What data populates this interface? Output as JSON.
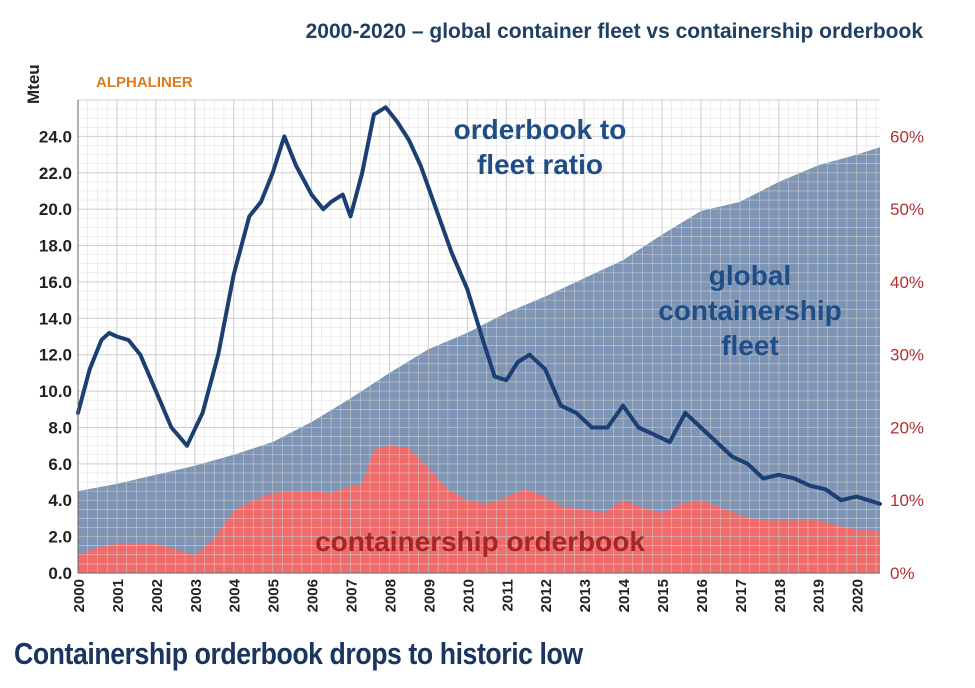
{
  "title": "2000-2020 – global container fleet  vs containership orderbook",
  "headline": "Containership orderbook drops to historic low",
  "brand": "ALPHALINER",
  "annotations": {
    "ratio": "orderbook to fleet ratio",
    "fleet": "global containership fleet",
    "orderbook": "containership orderbook"
  },
  "colors": {
    "fleet_fill": "#7f95b5",
    "orderbook_fill": "#f26b6b",
    "ratio_line": "#1c3f73",
    "left_axis_text": "#222222",
    "right_axis_text": "#b03030",
    "title_text": "#1f3f63"
  },
  "chart_data": {
    "type": "area",
    "x_axis": {
      "ticks": [
        "2000",
        "2001",
        "2002",
        "2003",
        "2004",
        "2005",
        "2006",
        "2007",
        "2008",
        "2009",
        "2010",
        "2011",
        "2012",
        "2013",
        "2014",
        "2015",
        "2016",
        "2017",
        "2018",
        "2019",
        "2020"
      ],
      "range": [
        2000,
        2020.6
      ]
    },
    "y_left": {
      "label": "Mteu",
      "range": [
        0,
        26
      ],
      "ticks": [
        "0.0",
        "2.0",
        "4.0",
        "6.0",
        "8.0",
        "10.0",
        "12.0",
        "14.0",
        "16.0",
        "18.0",
        "20.0",
        "22.0",
        "24.0"
      ]
    },
    "y_right": {
      "range": [
        0,
        0.65
      ],
      "ticks": [
        "0%",
        "10%",
        "20%",
        "30%",
        "40%",
        "50%",
        "60%"
      ]
    },
    "grid": true,
    "series": [
      {
        "name": "global containership fleet",
        "axis": "left",
        "type": "area",
        "x": [
          2000,
          2001,
          2002,
          2003,
          2004,
          2005,
          2006,
          2007,
          2008,
          2009,
          2010,
          2011,
          2012,
          2013,
          2014,
          2015,
          2016,
          2017,
          2018,
          2019,
          2020,
          2020.6
        ],
        "y": [
          4.5,
          4.9,
          5.4,
          5.9,
          6.5,
          7.2,
          8.3,
          9.6,
          11.0,
          12.3,
          13.2,
          14.3,
          15.2,
          16.2,
          17.2,
          18.6,
          19.9,
          20.4,
          21.5,
          22.4,
          23.0,
          23.4
        ]
      },
      {
        "name": "containership orderbook",
        "axis": "left",
        "type": "area",
        "x": [
          2000,
          2000.5,
          2001,
          2001.5,
          2002,
          2002.5,
          2003,
          2003.5,
          2004,
          2004.5,
          2005,
          2005.5,
          2006,
          2006.5,
          2007,
          2007.3,
          2007.6,
          2008,
          2008.5,
          2009,
          2009.5,
          2010,
          2010.5,
          2011,
          2011.5,
          2012,
          2012.5,
          2013,
          2013.5,
          2014,
          2014.5,
          2015,
          2015.5,
          2016,
          2016.5,
          2017,
          2017.5,
          2018,
          2018.5,
          2019,
          2019.5,
          2020,
          2020.6
        ],
        "y": [
          1.0,
          1.4,
          1.6,
          1.6,
          1.6,
          1.3,
          1.0,
          1.9,
          3.4,
          4.0,
          4.4,
          4.5,
          4.5,
          4.4,
          4.8,
          4.9,
          6.8,
          7.0,
          6.9,
          5.8,
          4.6,
          4.0,
          3.8,
          4.2,
          4.6,
          4.2,
          3.6,
          3.5,
          3.3,
          4.0,
          3.6,
          3.3,
          3.8,
          4.0,
          3.6,
          3.2,
          2.9,
          2.9,
          2.9,
          2.9,
          2.6,
          2.4,
          2.3
        ]
      },
      {
        "name": "orderbook to fleet ratio",
        "axis": "right",
        "type": "line",
        "x": [
          2000,
          2000.3,
          2000.6,
          2000.8,
          2001,
          2001.3,
          2001.6,
          2002,
          2002.4,
          2002.8,
          2003.2,
          2003.6,
          2004,
          2004.4,
          2004.7,
          2005,
          2005.3,
          2005.6,
          2006,
          2006.3,
          2006.5,
          2006.8,
          2007,
          2007.3,
          2007.6,
          2007.9,
          2008.2,
          2008.5,
          2008.8,
          2009.2,
          2009.6,
          2010,
          2010.4,
          2010.7,
          2011,
          2011.3,
          2011.6,
          2012,
          2012.4,
          2012.8,
          2013.2,
          2013.6,
          2014,
          2014.4,
          2014.8,
          2015.2,
          2015.6,
          2016,
          2016.4,
          2016.8,
          2017.2,
          2017.6,
          2018,
          2018.4,
          2018.8,
          2019.2,
          2019.6,
          2020,
          2020.3,
          2020.6
        ],
        "y": [
          0.22,
          0.28,
          0.32,
          0.33,
          0.325,
          0.32,
          0.3,
          0.25,
          0.2,
          0.175,
          0.22,
          0.3,
          0.41,
          0.49,
          0.51,
          0.55,
          0.6,
          0.56,
          0.52,
          0.5,
          0.51,
          0.52,
          0.49,
          0.55,
          0.63,
          0.64,
          0.62,
          0.595,
          0.56,
          0.5,
          0.44,
          0.39,
          0.32,
          0.27,
          0.265,
          0.29,
          0.3,
          0.28,
          0.23,
          0.22,
          0.2,
          0.2,
          0.23,
          0.2,
          0.19,
          0.18,
          0.22,
          0.2,
          0.18,
          0.16,
          0.15,
          0.13,
          0.135,
          0.13,
          0.12,
          0.115,
          0.1,
          0.105,
          0.1,
          0.095
        ]
      }
    ]
  }
}
